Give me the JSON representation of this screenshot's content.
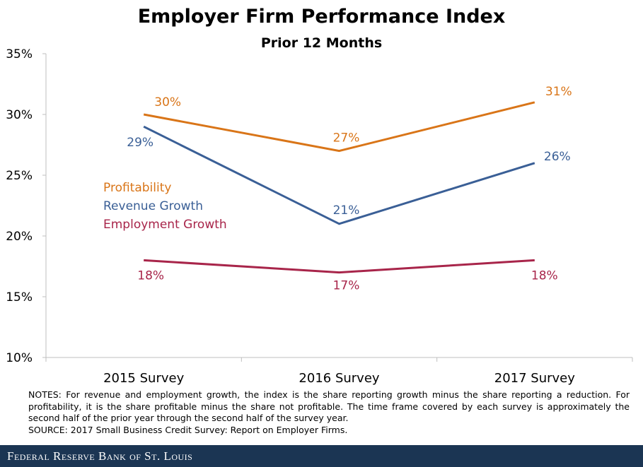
{
  "chart_data": {
    "type": "line",
    "title": "Employer Firm Performance Index",
    "subtitle": "Prior 12 Months",
    "categories": [
      "2015 Survey",
      "2016 Survey",
      "2017 Survey"
    ],
    "ylim": [
      10,
      35
    ],
    "yticks": [
      10,
      15,
      20,
      25,
      30,
      35
    ],
    "ytick_labels": [
      "10%",
      "15%",
      "20%",
      "25%",
      "30%",
      "35%"
    ],
    "grid": false,
    "legend_placement": "left",
    "series": [
      {
        "name": "Profitability",
        "values": [
          30,
          27,
          31
        ],
        "labels": [
          "30%",
          "27%",
          "31%"
        ],
        "color": "#d97518"
      },
      {
        "name": "Revenue Growth",
        "values": [
          29,
          21,
          26
        ],
        "labels": [
          "29%",
          "21%",
          "26%"
        ],
        "color": "#3a5f96"
      },
      {
        "name": "Employment Growth",
        "values": [
          18,
          17,
          18
        ],
        "labels": [
          "18%",
          "17%",
          "18%"
        ],
        "color": "#a8254a"
      }
    ]
  },
  "notes": {
    "body": "NOTES: For revenue and employment growth, the index is the share reporting growth minus the share reporting a reduction. For profitability, it is the share profitable minus the share not profitable. The time frame covered by each survey is approximately the second half of the prior year through the second half of the survey year.",
    "source": "SOURCE: 2017 Small Business Credit Survey: Report on Employer Firms."
  },
  "footer": {
    "brand": "Federal Reserve Bank of St. Louis"
  }
}
